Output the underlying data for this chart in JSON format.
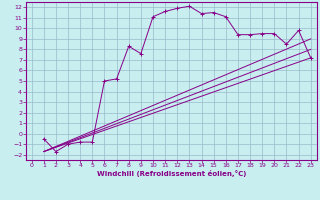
{
  "xlabel": "Windchill (Refroidissement éolien,°C)",
  "bg_color": "#c8eef0",
  "line_color": "#880088",
  "grid_color": "#99bbcc",
  "xlim": [
    -0.5,
    23.5
  ],
  "ylim": [
    -2.5,
    12.5
  ],
  "xticks": [
    0,
    1,
    2,
    3,
    4,
    5,
    6,
    7,
    8,
    9,
    10,
    11,
    12,
    13,
    14,
    15,
    16,
    17,
    18,
    19,
    20,
    21,
    22,
    23
  ],
  "yticks": [
    -2,
    -1,
    0,
    1,
    2,
    3,
    4,
    5,
    6,
    7,
    8,
    9,
    10,
    11,
    12
  ],
  "curve_x": [
    1,
    2,
    3,
    4,
    5,
    6,
    7,
    8,
    9,
    10,
    11,
    12,
    13,
    14,
    15,
    16,
    17,
    18,
    19,
    20,
    21,
    22,
    23
  ],
  "curve_y": [
    -0.5,
    -1.7,
    -1.0,
    -0.8,
    -0.8,
    5.0,
    5.2,
    8.3,
    7.6,
    11.1,
    11.6,
    11.9,
    12.1,
    11.4,
    11.5,
    11.1,
    9.4,
    9.4,
    9.5,
    9.5,
    8.5,
    9.8,
    7.2
  ],
  "line1_x": [
    1,
    23
  ],
  "line1_y": [
    -1.7,
    7.2
  ],
  "line2_x": [
    1,
    23
  ],
  "line2_y": [
    -1.7,
    8.0
  ],
  "line3_x": [
    1,
    23
  ],
  "line3_y": [
    -1.7,
    9.0
  ]
}
